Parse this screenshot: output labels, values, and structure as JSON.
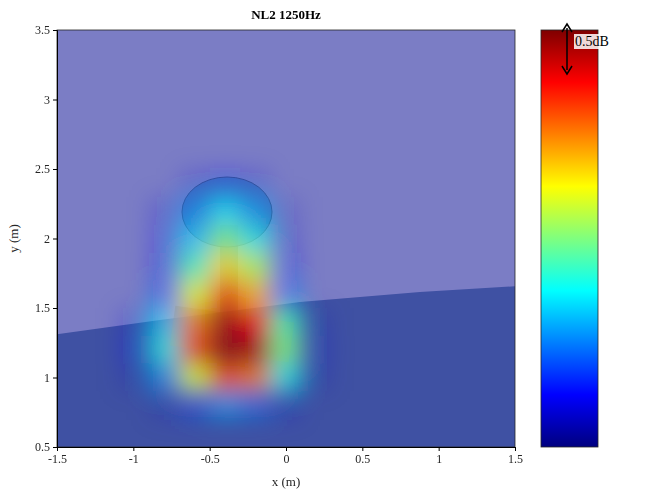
{
  "chart_data": {
    "type": "heatmap",
    "title": "NL2 1250Hz",
    "x_label": "x (m)",
    "y_label": "y (m)",
    "xlim": [
      -1.5,
      1.5
    ],
    "ylim": [
      0.5,
      3.5
    ],
    "xticks": [
      -1.5,
      -1,
      -0.5,
      0,
      0.5,
      1,
      1.5
    ],
    "yticks": [
      0.5,
      1,
      1.5,
      2,
      2.5,
      3,
      3.5
    ],
    "x": [
      -1.4,
      -1.2,
      -1.0,
      -0.8,
      -0.6,
      -0.4,
      -0.2,
      0.0,
      0.2,
      0.4,
      0.6,
      0.8,
      1.0,
      1.2,
      1.4
    ],
    "y": [
      0.6,
      0.8,
      1.0,
      1.2,
      1.4,
      1.6,
      1.8,
      2.0,
      2.2,
      2.4,
      2.6,
      2.8,
      3.0,
      3.2,
      3.4
    ],
    "z": [
      [
        0,
        0,
        0,
        0,
        0,
        0,
        0,
        0,
        0,
        0,
        0,
        0,
        0,
        0,
        0
      ],
      [
        0,
        0,
        0,
        0.3,
        0.8,
        1.2,
        1.0,
        0.4,
        0,
        0,
        0,
        0,
        0,
        0,
        0
      ],
      [
        0,
        0,
        0.3,
        1.2,
        2.4,
        3.2,
        3.0,
        1.6,
        0.3,
        0,
        0,
        0,
        0,
        0,
        0
      ],
      [
        0,
        0,
        0.5,
        1.6,
        3.2,
        3.9,
        3.8,
        2.0,
        0.4,
        0,
        0,
        0,
        0,
        0,
        0
      ],
      [
        0,
        0,
        0.4,
        1.4,
        3.0,
        3.8,
        3.5,
        1.8,
        0.3,
        0,
        0,
        0,
        0,
        0,
        0
      ],
      [
        0,
        0,
        0,
        0.9,
        2.4,
        3.2,
        2.8,
        1.0,
        0,
        0,
        0,
        0,
        0,
        0,
        0
      ],
      [
        0,
        0,
        0,
        0.6,
        1.8,
        2.6,
        2.2,
        0.6,
        0,
        0,
        0,
        0,
        0,
        0,
        0
      ],
      [
        0,
        0,
        0,
        0.5,
        1.4,
        2.0,
        1.6,
        0.4,
        0,
        0,
        0,
        0,
        0,
        0,
        0
      ],
      [
        0,
        0,
        0,
        0.4,
        1.1,
        1.5,
        1.2,
        0.3,
        0,
        0,
        0,
        0,
        0,
        0,
        0
      ],
      [
        0,
        0,
        0,
        0,
        0.4,
        0.6,
        0.4,
        0,
        0,
        0,
        0,
        0,
        0,
        0,
        0
      ],
      [
        0,
        0,
        0,
        0,
        0,
        0,
        0,
        0,
        0,
        0,
        0,
        0,
        0,
        0,
        0
      ],
      [
        0,
        0,
        0,
        0,
        0,
        0,
        0,
        0,
        0,
        0,
        0,
        0,
        0,
        0,
        0
      ],
      [
        0,
        0,
        0,
        0,
        0,
        0,
        0,
        0,
        0,
        0,
        0,
        0,
        0,
        0,
        0
      ],
      [
        0,
        0,
        0,
        0,
        0,
        0,
        0,
        0,
        0,
        0,
        0,
        0,
        0,
        0,
        0
      ],
      [
        0,
        0,
        0,
        0,
        0,
        0,
        0,
        0,
        0,
        0,
        0,
        0,
        0,
        0,
        0
      ]
    ],
    "colorbar_range": [
      0,
      4
    ],
    "colorbar_label": "0.5dB"
  }
}
